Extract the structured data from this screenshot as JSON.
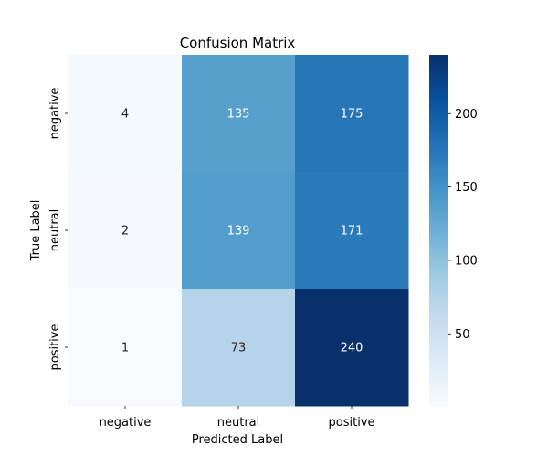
{
  "chart_data": {
    "type": "heatmap",
    "title": "Confusion Matrix",
    "xlabel": "Predicted Label",
    "ylabel": "True Label",
    "x_categories": [
      "negative",
      "neutral",
      "positive"
    ],
    "y_categories": [
      "negative",
      "neutral",
      "positive"
    ],
    "values": [
      [
        4,
        135,
        175
      ],
      [
        2,
        139,
        171
      ],
      [
        1,
        73,
        240
      ]
    ],
    "colormap": "Blues",
    "colorbar": {
      "vmin": 1,
      "vmax": 240,
      "ticks": [
        50,
        100,
        150,
        200
      ]
    },
    "annotation_colors": {
      "dark_text": "#262626",
      "light_text": "#ffffff"
    }
  }
}
